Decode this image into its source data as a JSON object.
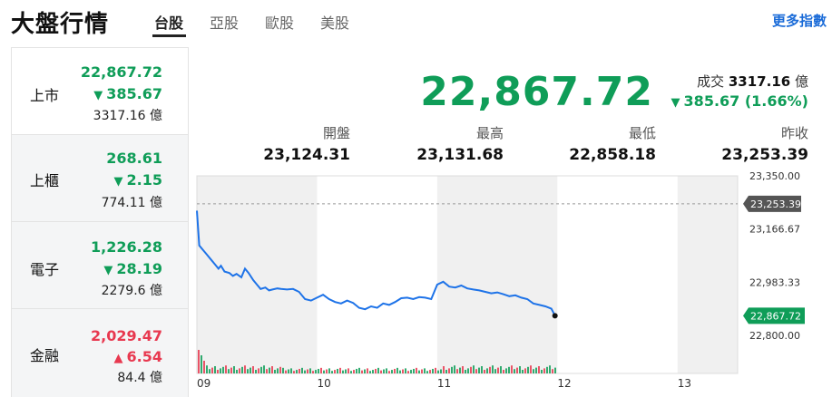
{
  "header": {
    "title": "大盤行情",
    "tabs": [
      {
        "label": "台股",
        "active": true
      },
      {
        "label": "亞股",
        "active": false
      },
      {
        "label": "歐股",
        "active": false
      },
      {
        "label": "美股",
        "active": false
      }
    ],
    "more_link": "更多指數"
  },
  "sidebar": {
    "items": [
      {
        "name": "上市",
        "price": "22,867.72",
        "change": "385.67",
        "direction": "down",
        "volume": "3317.16 億",
        "active": true
      },
      {
        "name": "上櫃",
        "price": "268.61",
        "change": "2.15",
        "direction": "down",
        "volume": "774.11 億",
        "active": false
      },
      {
        "name": "電子",
        "price": "1,226.28",
        "change": "28.19",
        "direction": "down",
        "volume": "2279.6 億",
        "active": false
      },
      {
        "name": "金融",
        "price": "2,029.47",
        "change": "6.54",
        "direction": "up",
        "volume": "84.4 億",
        "active": false
      }
    ],
    "icons": {
      "down": "▼",
      "up": "▲"
    }
  },
  "quote": {
    "price": "22,867.72",
    "volume_label": "成交",
    "volume_value": "3317.16",
    "volume_unit": "億",
    "change": "385.67 (1.66%)",
    "direction_icon": "▼",
    "stats": [
      {
        "label": "開盤",
        "value": "23,124.31"
      },
      {
        "label": "最高",
        "value": "23,131.68"
      },
      {
        "label": "最低",
        "value": "22,858.18"
      },
      {
        "label": "昨收",
        "value": "23,253.39"
      }
    ]
  },
  "colors": {
    "down": "#0f9d58",
    "up": "#e8384f",
    "line": "#1e73e8",
    "link": "#1a6bd8",
    "shade": "#f0f0f0"
  },
  "chart_data": {
    "type": "line",
    "x_ticks": [
      "09",
      "10",
      "11",
      "12",
      "13"
    ],
    "y_ticks": [
      "23,350.00",
      "23,166.67",
      "22,983.33",
      "22,800.00"
    ],
    "y_tick_values": [
      23350.0,
      23166.67,
      22983.33,
      22800.0
    ],
    "ylim": [
      22800.0,
      23350.0
    ],
    "xlim": [
      9.0,
      13.5
    ],
    "reference_line": {
      "label": "23,253.39",
      "value": 23253.39
    },
    "last_label": {
      "label": "22,867.72",
      "value": 22867.72
    },
    "series": [
      {
        "x": [
          9.0,
          9.02,
          9.05,
          9.08,
          9.12,
          9.15,
          9.18,
          9.2,
          9.23,
          9.27,
          9.3,
          9.33,
          9.37,
          9.4,
          9.43,
          9.47,
          9.5,
          9.53,
          9.57,
          9.6,
          9.63,
          9.67,
          9.7,
          9.75,
          9.8,
          9.85,
          9.9,
          9.95,
          10.0,
          10.05,
          10.1,
          10.15,
          10.2,
          10.25,
          10.3,
          10.35,
          10.4,
          10.45,
          10.5,
          10.55,
          10.6,
          10.65,
          10.7,
          10.75,
          10.8,
          10.85,
          10.9,
          10.95,
          11.0,
          11.05,
          11.1,
          11.15,
          11.2,
          11.25,
          11.3,
          11.35,
          11.4,
          11.45,
          11.5,
          11.55,
          11.6,
          11.65,
          11.7,
          11.75,
          11.8,
          11.85,
          11.9,
          11.95
        ],
        "y": [
          23230,
          23110,
          23095,
          23080,
          23060,
          23045,
          23030,
          23040,
          23020,
          23015,
          23005,
          23012,
          23000,
          23030,
          23015,
          22990,
          22975,
          22960,
          22965,
          22955,
          22958,
          22962,
          22960,
          22958,
          22960,
          22950,
          22925,
          22920,
          22930,
          22940,
          22925,
          22915,
          22910,
          22920,
          22912,
          22895,
          22890,
          22900,
          22895,
          22910,
          22905,
          22915,
          22928,
          22930,
          22925,
          22932,
          22930,
          22925,
          22975,
          22985,
          22968,
          22965,
          22972,
          22962,
          22958,
          22955,
          22950,
          22945,
          22948,
          22942,
          22935,
          22938,
          22930,
          22925,
          22910,
          22905,
          22900,
          22892
        ]
      }
    ],
    "last_point": {
      "x": 11.98,
      "y": 22867.72
    },
    "shaded_hours": [
      [
        9.0,
        10.0
      ],
      [
        11.0,
        12.0
      ],
      [
        13.0,
        13.5
      ]
    ]
  }
}
